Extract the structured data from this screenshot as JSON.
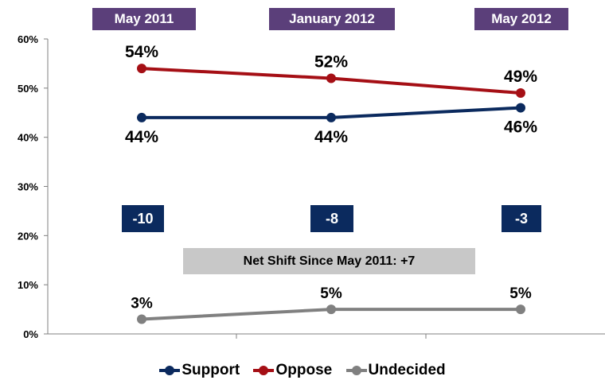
{
  "colors": {
    "support": "#0b2a5e",
    "oppose": "#a50f15",
    "undecided": "#808080",
    "period_box": "#5b3f7a",
    "net_box": "#0b2a5e",
    "shift_box": "#c8c8c8"
  },
  "periods": [
    "May 2011",
    "January 2012",
    "May 2012"
  ],
  "net_labels": [
    "-10",
    "-8",
    "-3"
  ],
  "shift_text": "Net Shift Since May 2011: +7",
  "legend": [
    {
      "name": "Support",
      "color_key": "support"
    },
    {
      "name": "Oppose",
      "color_key": "oppose"
    },
    {
      "name": "Undecided",
      "color_key": "undecided"
    }
  ],
  "chart_data": {
    "type": "line",
    "categories": [
      "May 2011",
      "January 2012",
      "May 2012"
    ],
    "series": [
      {
        "name": "Support",
        "values": [
          44,
          44,
          46
        ],
        "labels": [
          "44%",
          "44%",
          "46%"
        ]
      },
      {
        "name": "Oppose",
        "values": [
          54,
          52,
          49
        ],
        "labels": [
          "54%",
          "52%",
          "49%"
        ]
      },
      {
        "name": "Undecided",
        "values": [
          3,
          5,
          5
        ],
        "labels": [
          "3%",
          "5%",
          "5%"
        ]
      }
    ],
    "y_ticks": [
      "0%",
      "10%",
      "20%",
      "30%",
      "40%",
      "50%",
      "60%"
    ],
    "ylim": [
      0,
      60
    ],
    "grid": false,
    "legend_position": "bottom"
  }
}
